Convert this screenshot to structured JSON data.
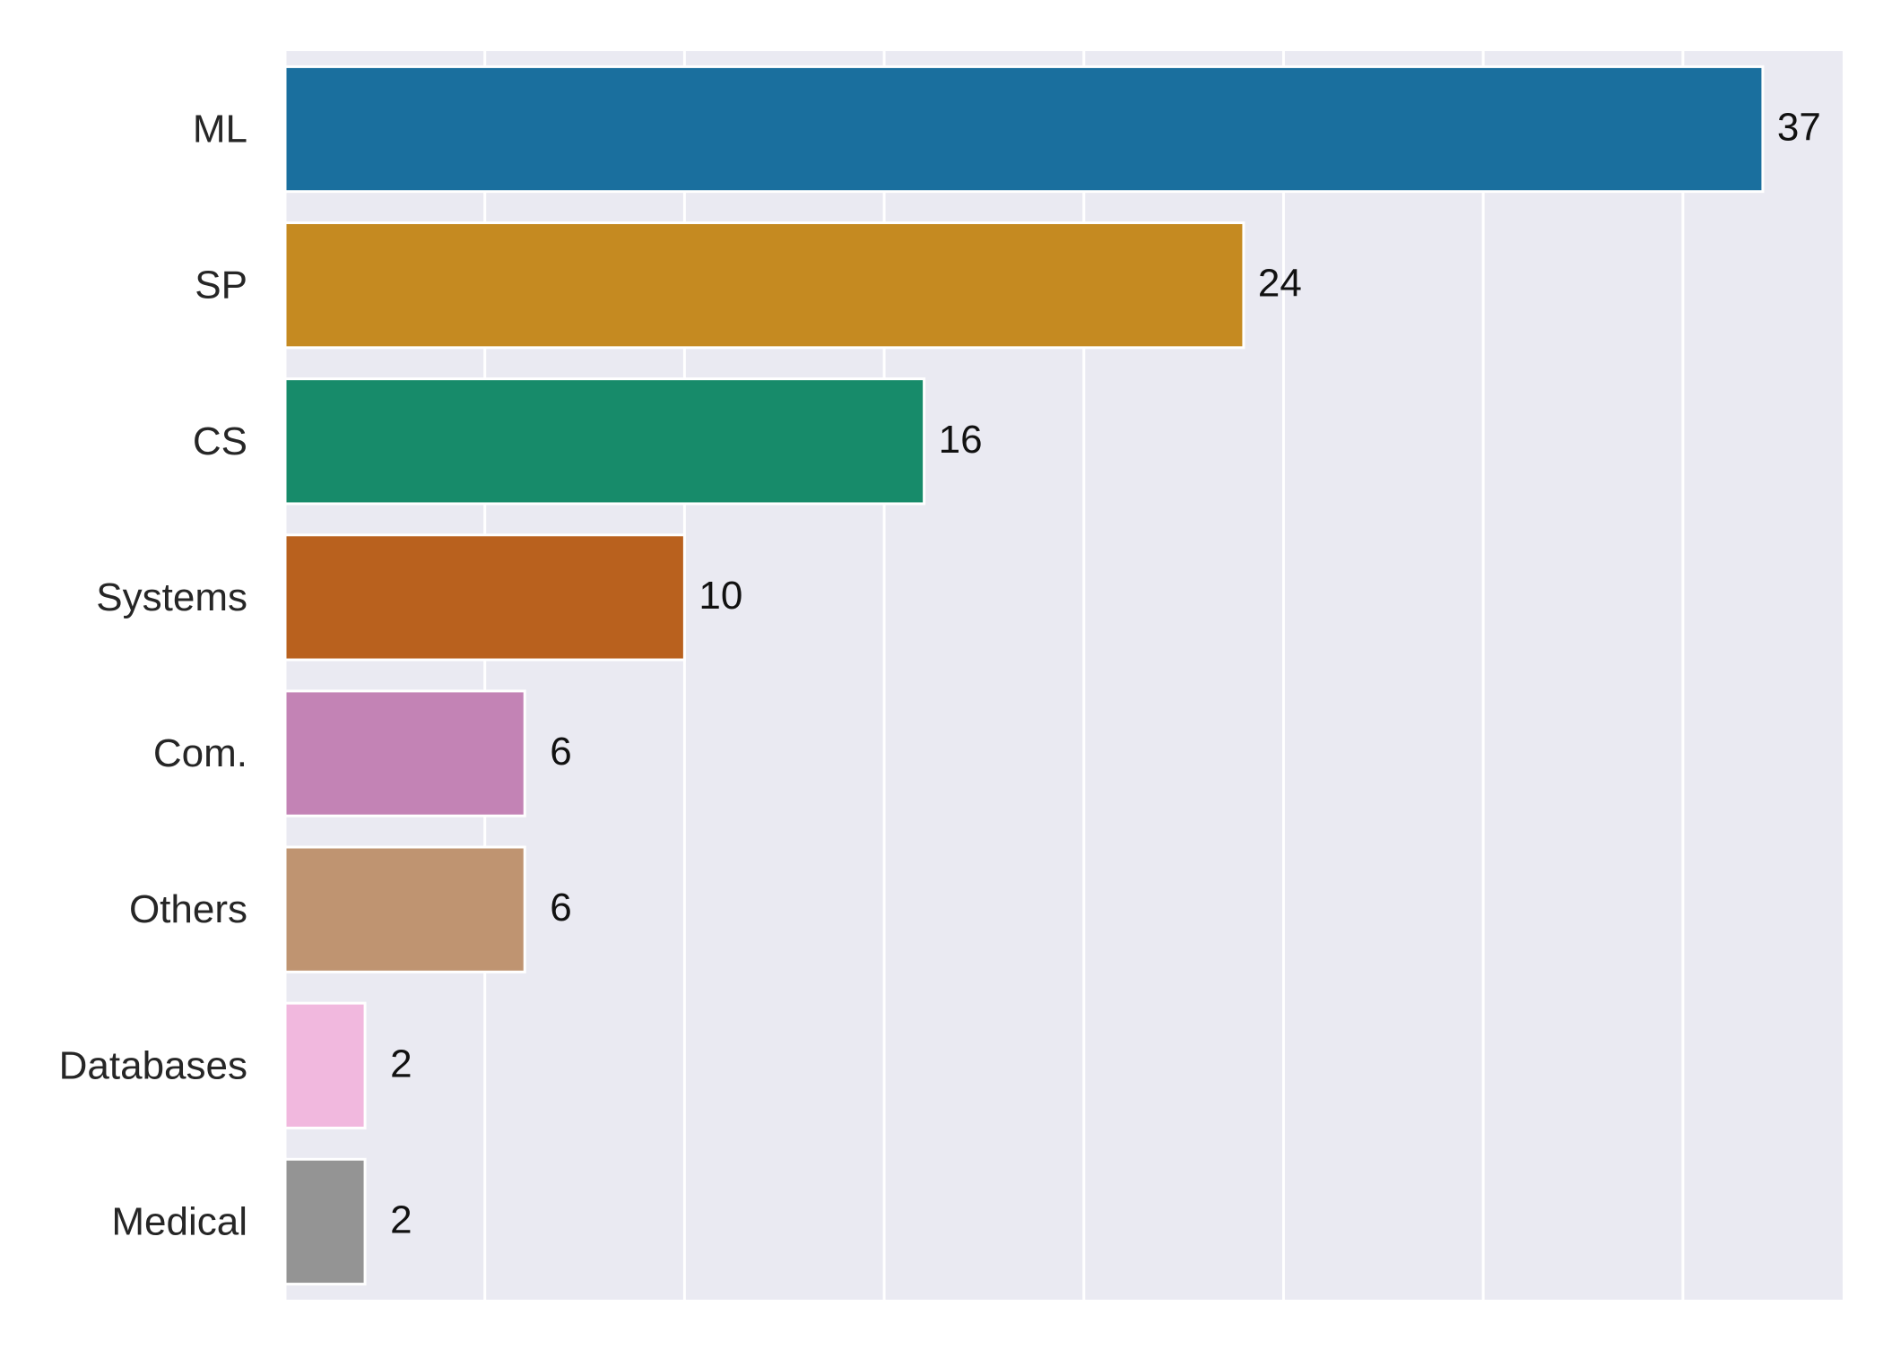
{
  "chart_data": {
    "type": "bar",
    "orientation": "horizontal",
    "categories": [
      "ML",
      "SP",
      "CS",
      "Systems",
      "Com.",
      "Others",
      "Databases",
      "Medical"
    ],
    "values": [
      37,
      24,
      16,
      10,
      6,
      6,
      2,
      2
    ],
    "value_labels": [
      "37",
      "24",
      "16",
      "10",
      "6",
      "6",
      "2",
      "2"
    ],
    "colors": [
      "#1a6f9e",
      "#c58a21",
      "#178b6a",
      "#b9611e",
      "#c383b5",
      "#bf9471",
      "#f1b8de",
      "#949494"
    ],
    "title": "",
    "xlabel": "",
    "ylabel": "",
    "xlim": [
      0,
      39
    ],
    "x_gridlines": [
      0,
      5,
      10,
      15,
      20,
      25,
      30,
      35
    ],
    "grid": true,
    "legend": "none",
    "background": "#eaeaf2"
  }
}
